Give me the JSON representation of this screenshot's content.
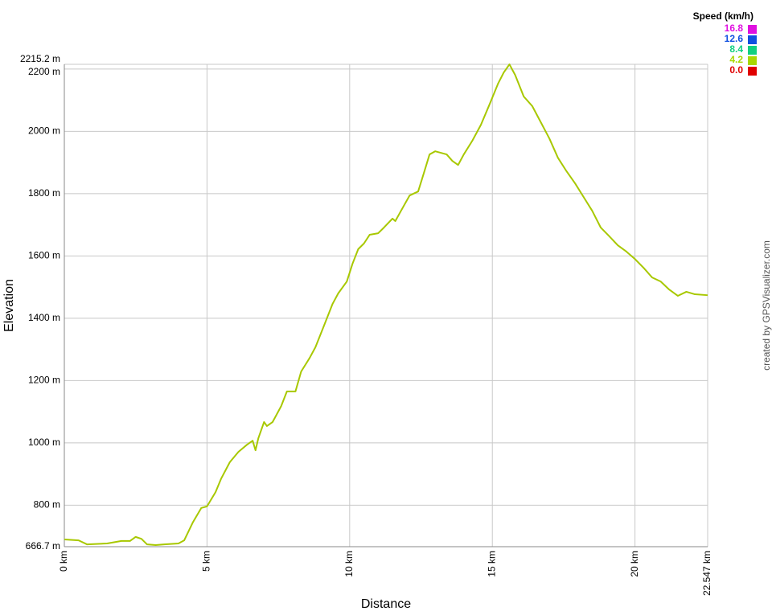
{
  "chart_data": {
    "type": "line",
    "x_label": "Distance",
    "y_label": "Elevation",
    "credit": "created by GPSVisualizer.com",
    "x": [
      0,
      0.5,
      0.8,
      1.5,
      2,
      2.3,
      2.5,
      2.7,
      2.9,
      3.2,
      3.5,
      4.0,
      4.2,
      4.5,
      4.8,
      5.0,
      5.3,
      5.5,
      5.8,
      6.1,
      6.4,
      6.6,
      6.7,
      6.8,
      7.0,
      7.1,
      7.3,
      7.6,
      7.8,
      8.1,
      8.3,
      8.6,
      8.8,
      9.1,
      9.4,
      9.6,
      9.9,
      10.1,
      10.3,
      10.5,
      10.7,
      11.0,
      11.2,
      11.5,
      11.6,
      11.8,
      12.1,
      12.4,
      12.6,
      12.8,
      13.0,
      13.4,
      13.6,
      13.8,
      14.0,
      14.3,
      14.6,
      14.9,
      15.2,
      15.4,
      15.6,
      15.8,
      16.1,
      16.4,
      16.7,
      17.0,
      17.3,
      17.6,
      17.9,
      18.2,
      18.5,
      18.8,
      19.1,
      19.4,
      19.7,
      20.0,
      20.3,
      20.6,
      20.9,
      21.2,
      21.5,
      21.8,
      22.1,
      22.547
    ],
    "series": [
      {
        "color": "#a8c800",
        "values": [
          690,
          687,
          674,
          677,
          685,
          685,
          698,
          692,
          674,
          672,
          674,
          677,
          687,
          744,
          791,
          796,
          842,
          886,
          938,
          971,
          994,
          1007,
          976,
          1015,
          1067,
          1054,
          1067,
          1118,
          1165,
          1165,
          1229,
          1273,
          1307,
          1376,
          1446,
          1480,
          1518,
          1575,
          1622,
          1640,
          1668,
          1673,
          1691,
          1720,
          1712,
          1745,
          1794,
          1807,
          1866,
          1926,
          1936,
          1926,
          1905,
          1892,
          1926,
          1970,
          2021,
          2086,
          2153,
          2189,
          2215,
          2181,
          2112,
          2081,
          2029,
          1977,
          1915,
          1872,
          1833,
          1789,
          1745,
          1691,
          1663,
          1634,
          1614,
          1590,
          1562,
          1531,
          1518,
          1492,
          1472,
          1485,
          1477,
          1474
        ]
      }
    ],
    "xlim": [
      0,
      22.547
    ],
    "xticks": [
      {
        "value": 0,
        "label": "0 km"
      },
      {
        "value": 5,
        "label": "5 km"
      },
      {
        "value": 10,
        "label": "10 km"
      },
      {
        "value": 15,
        "label": "15 km"
      },
      {
        "value": 20,
        "label": "20 km"
      },
      {
        "value": 22.547,
        "label": "22.547 km"
      }
    ],
    "ylim": [
      666.7,
      2215.2
    ],
    "yticks": [
      {
        "value": 666.7,
        "label": "666.7 m"
      },
      {
        "value": 800,
        "label": "800 m"
      },
      {
        "value": 1000,
        "label": "1000 m"
      },
      {
        "value": 1200,
        "label": "1200 m"
      },
      {
        "value": 1400,
        "label": "1400 m"
      },
      {
        "value": 1600,
        "label": "1600 m"
      },
      {
        "value": 1800,
        "label": "1800 m"
      },
      {
        "value": 2000,
        "label": "2000 m"
      },
      {
        "value": 2200,
        "label": "2200 m"
      },
      {
        "value": 2215.2,
        "label": "2215.2 m"
      }
    ],
    "grid": true,
    "colorbar": {
      "title": "Speed (km/h)",
      "ticks": [
        16.8,
        12.6,
        8.4,
        4.2,
        {
          "value": 0,
          "label": "0.0"
        }
      ],
      "colors": [
        "#e010e0",
        "#1050e0",
        "#10d080",
        "#a8d800",
        "#e00000"
      ]
    }
  }
}
